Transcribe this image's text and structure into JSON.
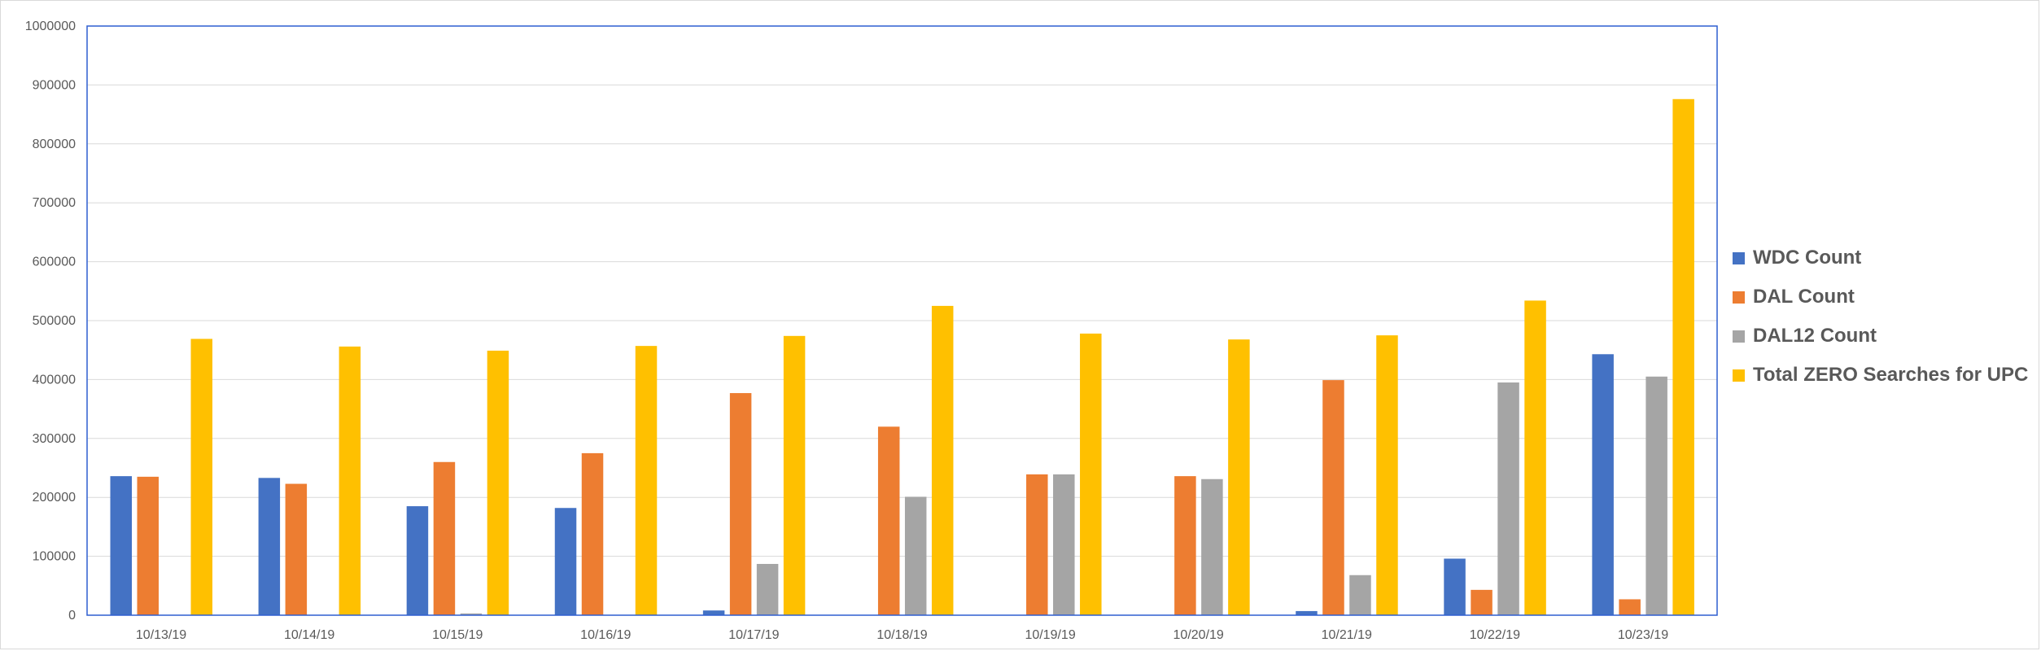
{
  "chart_data": {
    "type": "bar",
    "title": "",
    "xlabel": "",
    "ylabel": "",
    "ylim": [
      0,
      1000000
    ],
    "yticks": [
      0,
      100000,
      200000,
      300000,
      400000,
      500000,
      600000,
      700000,
      800000,
      900000,
      1000000
    ],
    "grid": true,
    "legend_position": "right",
    "categories": [
      "10/13/19",
      "10/14/19",
      "10/15/19",
      "10/16/19",
      "10/17/19",
      "10/18/19",
      "10/19/19",
      "10/20/19",
      "10/21/19",
      "10/22/19",
      "10/23/19"
    ],
    "series": [
      {
        "name": "WDC Count",
        "color": "#4472C4",
        "values": [
          236000,
          233000,
          185000,
          182000,
          8000,
          0,
          0,
          0,
          7000,
          96000,
          443000
        ]
      },
      {
        "name": "DAL Count",
        "color": "#ED7D31",
        "values": [
          235000,
          223000,
          260000,
          275000,
          377000,
          320000,
          239000,
          236000,
          399000,
          43000,
          27000
        ]
      },
      {
        "name": "DAL12 Count",
        "color": "#A5A5A5",
        "values": [
          0,
          0,
          3000,
          0,
          87000,
          201000,
          239000,
          231000,
          68000,
          395000,
          405000
        ]
      },
      {
        "name": "Total ZERO Searches for UPC",
        "color": "#FFC000",
        "values": [
          469000,
          456000,
          449000,
          457000,
          474000,
          525000,
          478000,
          468000,
          475000,
          534000,
          876000
        ]
      }
    ]
  }
}
